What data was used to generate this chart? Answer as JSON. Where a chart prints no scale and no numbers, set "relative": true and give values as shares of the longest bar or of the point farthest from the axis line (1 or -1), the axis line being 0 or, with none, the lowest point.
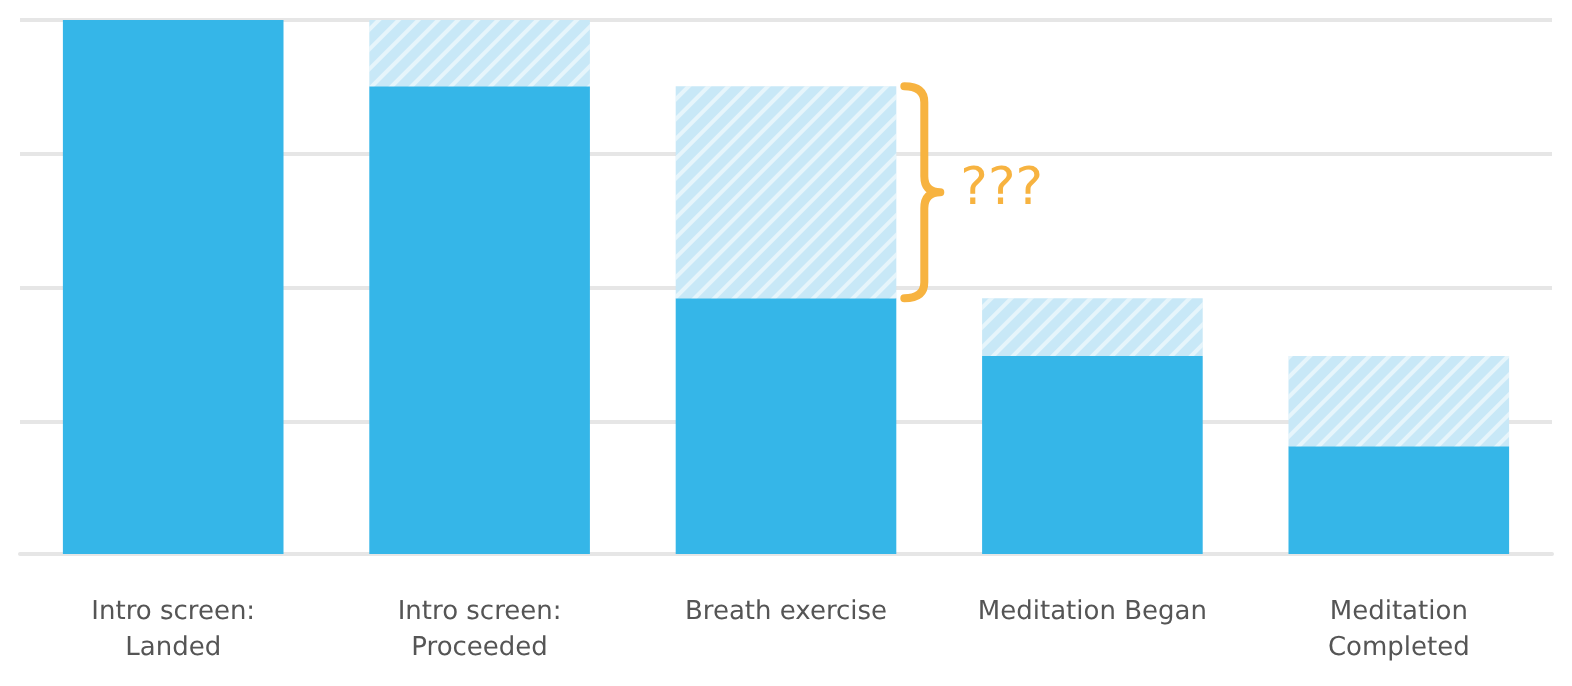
{
  "chart_data": {
    "type": "bar",
    "stacked": true,
    "relative": true,
    "grid": "y",
    "categories": [
      "Intro screen:\nLanded",
      "Intro screen:\nProceeded",
      "Breath exercise",
      "Meditation Began",
      "Meditation\nCompleted"
    ],
    "series": [
      {
        "color": "#35b6e8",
        "values": [
          1.0,
          0.876,
          0.479,
          0.371,
          0.202
        ]
      },
      {
        "color": "#c8e8f7",
        "values": [
          0,
          0.124,
          0.397,
          0.108,
          0.169
        ]
      }
    ],
    "annotations": [
      "???"
    ]
  }
}
